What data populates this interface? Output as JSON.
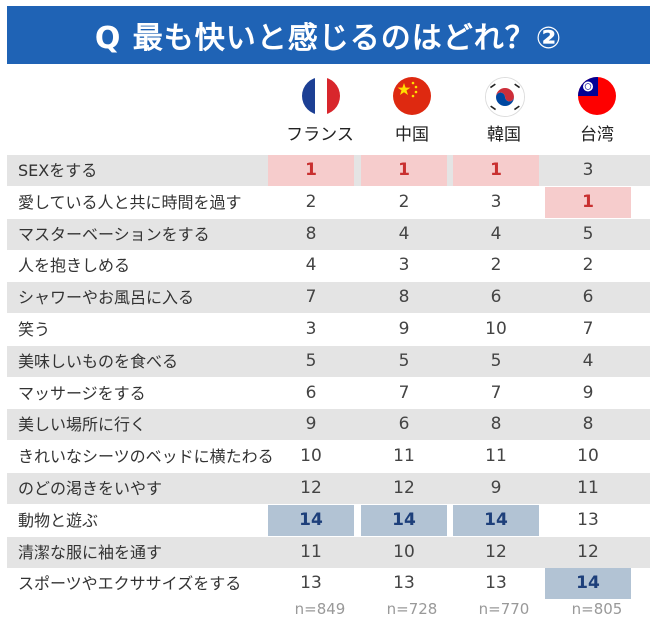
{
  "chart_data": {
    "type": "table",
    "title": "Q 最も快いと感じるのはどれ？②",
    "countries": [
      "フランス",
      "中国",
      "韓国",
      "台湾"
    ],
    "sample_sizes": [
      "n=849",
      "n=728",
      "n=770",
      "n=805"
    ],
    "rows": [
      {
        "label": "SEXをする",
        "values": [
          1,
          1,
          1,
          3
        ]
      },
      {
        "label": "愛している人と共に時間を過す",
        "values": [
          2,
          2,
          3,
          1
        ]
      },
      {
        "label": "マスターベーションをする",
        "values": [
          8,
          4,
          4,
          5
        ]
      },
      {
        "label": "人を抱きしめる",
        "values": [
          4,
          3,
          2,
          2
        ]
      },
      {
        "label": "シャワーやお風呂に入る",
        "values": [
          7,
          8,
          6,
          6
        ]
      },
      {
        "label": "笑う",
        "values": [
          3,
          9,
          10,
          7
        ]
      },
      {
        "label": "美味しいものを食べる",
        "values": [
          5,
          5,
          5,
          4
        ]
      },
      {
        "label": "マッサージをする",
        "values": [
          6,
          7,
          7,
          9
        ]
      },
      {
        "label": "美しい場所に行く",
        "values": [
          9,
          6,
          8,
          8
        ]
      },
      {
        "label": "きれいなシーツのベッドに横たわる",
        "values": [
          10,
          11,
          11,
          10
        ]
      },
      {
        "label": "のどの渇きをいやす",
        "values": [
          12,
          12,
          9,
          11
        ]
      },
      {
        "label": "動物と遊ぶ",
        "values": [
          14,
          14,
          14,
          13
        ]
      },
      {
        "label": "清潔な服に袖を通す",
        "values": [
          11,
          10,
          12,
          12
        ]
      },
      {
        "label": "スポーツやエクササイズをする",
        "values": [
          13,
          13,
          13,
          14
        ]
      }
    ],
    "highlight_rank_top": 1,
    "highlight_rank_bottom": 14
  },
  "colors": {
    "title_bg": "#1f63b5",
    "top_highlight": "#f6cccc",
    "top_text": "#c93030",
    "bottom_highlight": "#b2c3d4",
    "bottom_text": "#1d3f7a",
    "row_shade": "#e4e4e4"
  },
  "flags": [
    "france-flag-icon",
    "china-flag-icon",
    "korea-flag-icon",
    "taiwan-flag-icon"
  ]
}
